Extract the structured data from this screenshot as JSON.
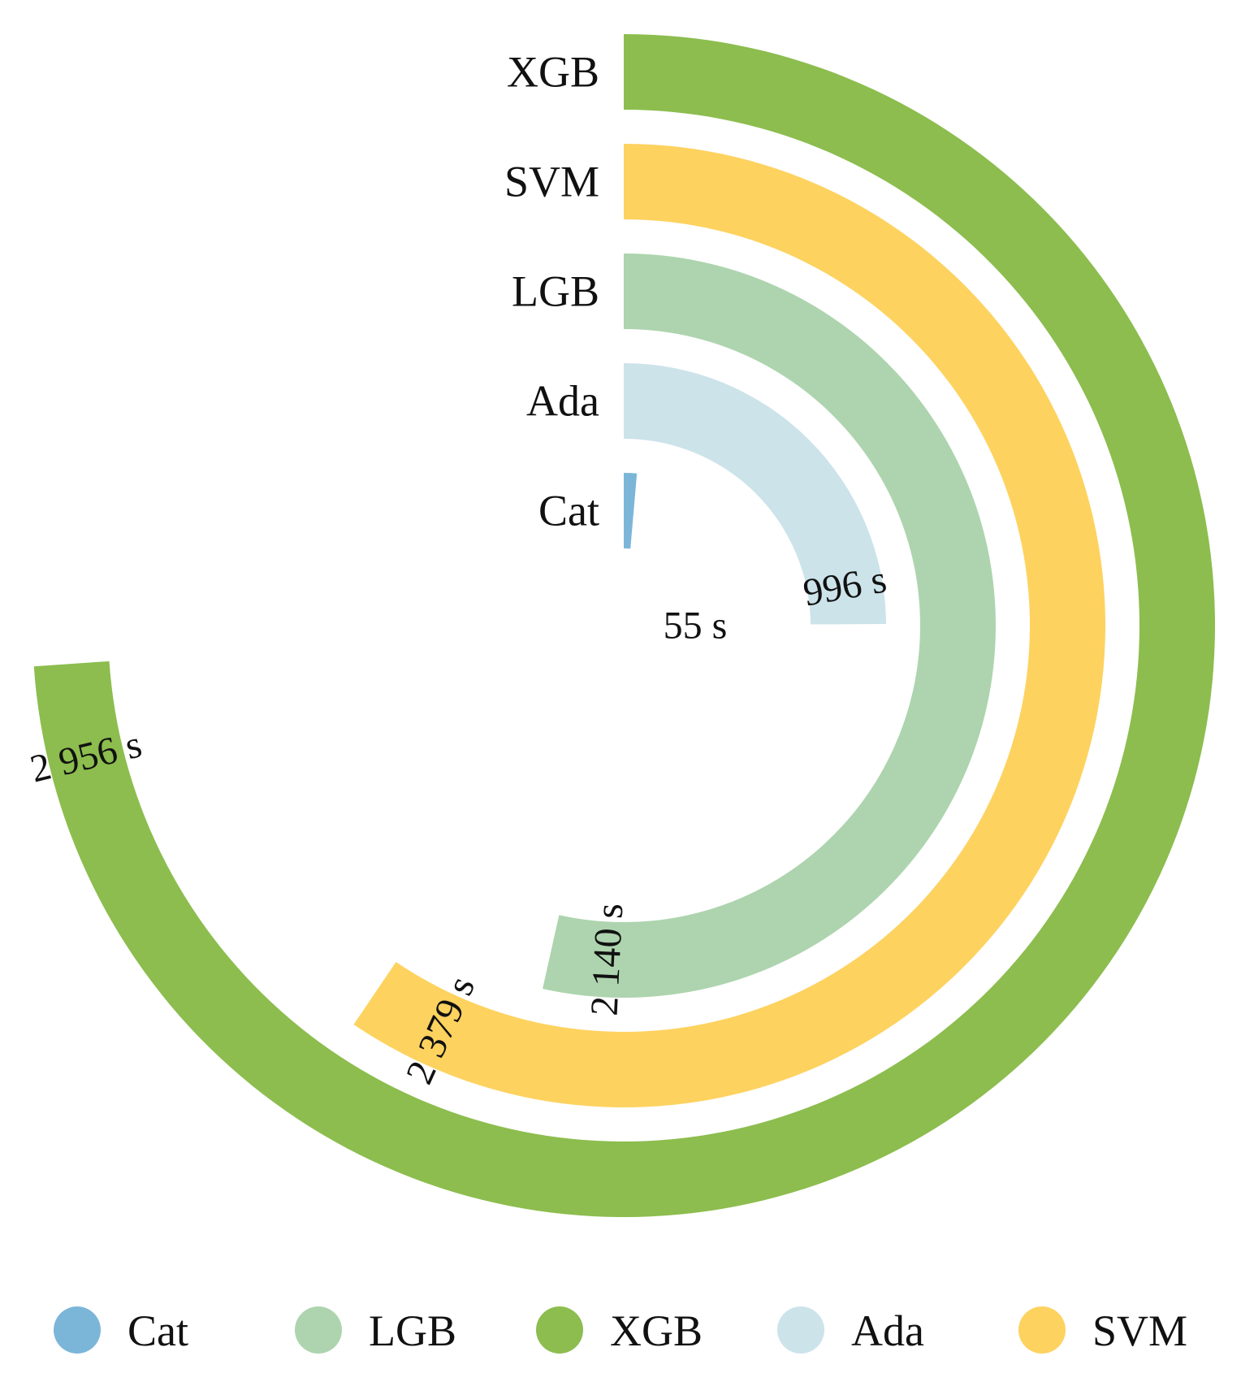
{
  "chart_data": {
    "type": "radial-bar",
    "title": "",
    "unit": "s",
    "max_value": 4000,
    "categories": [
      "Cat",
      "Ada",
      "LGB",
      "SVM",
      "XGB"
    ],
    "series": [
      {
        "name": "Cat",
        "value": 55,
        "label": "55 s",
        "color": "#7BB6D9"
      },
      {
        "name": "Ada",
        "value": 996,
        "label": "996 s",
        "color": "#CCE3EA"
      },
      {
        "name": "LGB",
        "value": 2140,
        "label": "2 140 s",
        "color": "#ADD4AE"
      },
      {
        "name": "SVM",
        "value": 2379,
        "label": "2 379 s",
        "color": "#FDD25F"
      },
      {
        "name": "XGB",
        "value": 2956,
        "label": "2 956 s",
        "color": "#8CBD4E"
      }
    ],
    "legend": {
      "position": "bottom",
      "items": [
        {
          "name": "Cat",
          "color": "#7BB6D9"
        },
        {
          "name": "LGB",
          "color": "#ADD4AE"
        },
        {
          "name": "XGB",
          "color": "#8CBD4E"
        },
        {
          "name": "Ada",
          "color": "#CCE3EA"
        },
        {
          "name": "SVM",
          "color": "#FDD25F"
        }
      ]
    }
  }
}
